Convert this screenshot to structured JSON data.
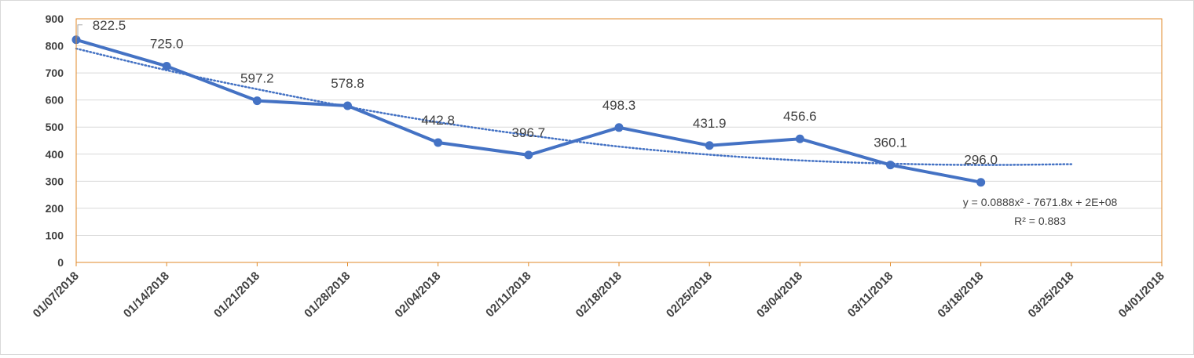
{
  "chart_data": {
    "type": "line",
    "title": "",
    "xlabel": "",
    "ylabel": "",
    "ylim": [
      0,
      900
    ],
    "yticks": [
      0,
      100,
      200,
      300,
      400,
      500,
      600,
      700,
      800,
      900
    ],
    "grid": true,
    "legend": "none",
    "x_tick_labels": [
      "01/07/2018",
      "01/14/2018",
      "01/21/2018",
      "01/28/2018",
      "02/04/2018",
      "02/11/2018",
      "02/18/2018",
      "02/25/2018",
      "03/04/2018",
      "03/11/2018",
      "03/18/2018",
      "03/25/2018",
      "04/01/2018"
    ],
    "series": [
      {
        "x": [
          "01/07/2018",
          "01/14/2018",
          "01/21/2018",
          "01/28/2018",
          "02/04/2018",
          "02/11/2018",
          "02/18/2018",
          "02/25/2018",
          "03/04/2018",
          "03/11/2018",
          "03/18/2018"
        ],
        "values": [
          822.5,
          725.0,
          597.2,
          578.8,
          442.8,
          396.7,
          498.3,
          431.9,
          456.6,
          360.1,
          296.0
        ],
        "data_labels": [
          "822.5",
          "725.0",
          "597.2",
          "578.8",
          "442.8",
          "396.7",
          "498.3",
          "431.9",
          "456.6",
          "360.1",
          "296.0"
        ],
        "color": "#4472c4"
      }
    ],
    "trendline": {
      "type": "polynomial-2",
      "color": "#4472c4",
      "style": "dotted",
      "x": [
        "01/07/2018",
        "01/14/2018",
        "01/21/2018",
        "01/28/2018",
        "02/04/2018",
        "02/11/2018",
        "02/18/2018",
        "02/25/2018",
        "03/04/2018",
        "03/11/2018",
        "03/18/2018",
        "03/25/2018"
      ],
      "values": [
        790,
        710,
        640,
        575,
        518,
        470,
        428,
        398,
        377,
        365,
        360,
        363
      ],
      "equation": "y = 0.0888x² - 7671.8x + 2E+08",
      "r_squared": "R² = 0.883"
    },
    "plot_border_color": "#e08a2a",
    "gridline_color": "#d9d9d9"
  }
}
